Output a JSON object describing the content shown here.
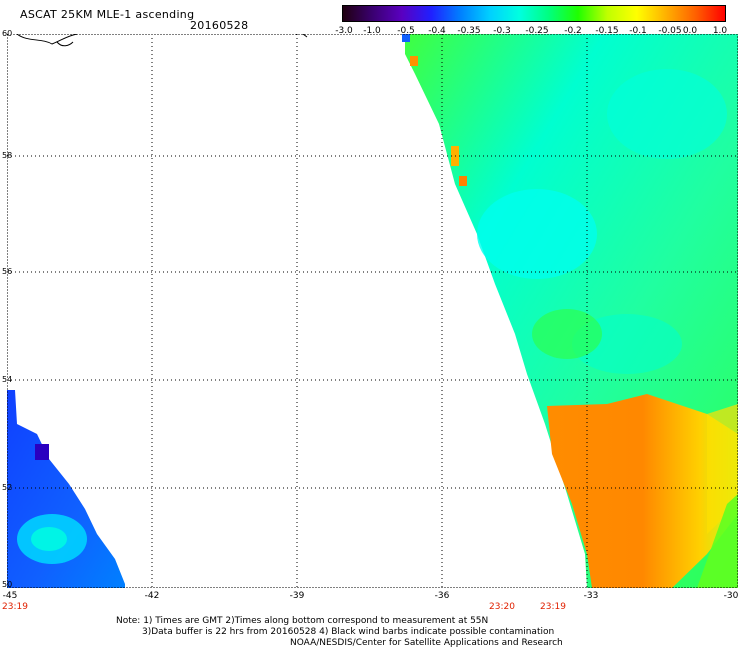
{
  "header": {
    "title": "ASCAT 25KM MLE-1 ascending",
    "date": "20160528"
  },
  "colorbar": {
    "labels": [
      "-3.0",
      "-1.0",
      "-0.5",
      "-0.4",
      "-0.35",
      "-0.3",
      "-0.25",
      "-0.2",
      "-0.15",
      "-0.1",
      "-0.05",
      "0.0",
      "1.0"
    ],
    "colors": [
      "#200010",
      "#3a0070",
      "#5a00c0",
      "#2020ff",
      "#0080ff",
      "#00d0ff",
      "#00ffe0",
      "#00ff80",
      "#20ff00",
      "#c0ff00",
      "#ffff00",
      "#ffb000",
      "#ff6000",
      "#ff0000"
    ]
  },
  "map": {
    "lat_labels": [
      "60",
      "58",
      "56",
      "54",
      "52",
      "50"
    ],
    "lon_labels": [
      "-45",
      "-42",
      "-39",
      "-36",
      "-33",
      "-30"
    ]
  },
  "times": {
    "left": "23:19",
    "mid1": "23:20",
    "mid2": "23:19"
  },
  "notes": {
    "line1": "Note: 1) Times are GMT 2)Times along bottom correspond to measurement at 55N",
    "line2": "3)Data buffer is 22 hrs from 20160528 4) Black wind barbs indicate possible contamination",
    "line3": "NOAA/NESDIS/Center for Satellite Applications and Research"
  }
}
